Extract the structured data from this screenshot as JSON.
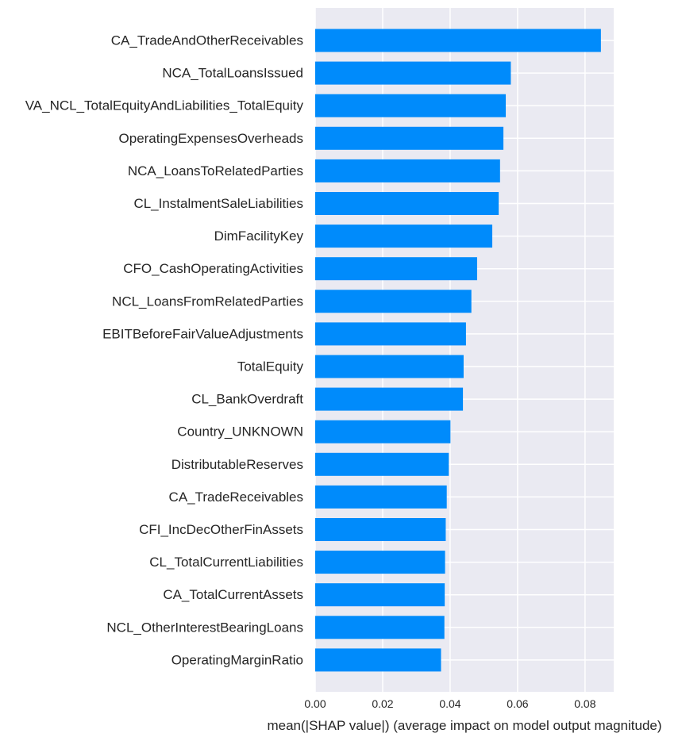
{
  "colors": {
    "bar": "#008bfb",
    "plot_background": "#eaeaf2",
    "grid": "#ffffff",
    "text": "#262626"
  },
  "chart_data": {
    "type": "bar",
    "orientation": "horizontal",
    "xlabel": "mean(|SHAP value|) (average impact on model output magnitude)",
    "xlim": [
      0,
      0.0885
    ],
    "xticks": [
      0.0,
      0.02,
      0.04,
      0.06,
      0.08
    ],
    "xtick_labels": [
      "0.00",
      "0.02",
      "0.04",
      "0.06",
      "0.08"
    ],
    "grid": true,
    "categories": [
      "CA_TradeAndOtherReceivables",
      "NCA_TotalLoansIssued",
      "VA_NCL_TotalEquityAndLiabilities_TotalEquity",
      "OperatingExpensesOverheads",
      "NCA_LoansToRelatedParties",
      "CL_InstalmentSaleLiabilities",
      "DimFacilityKey",
      "CFO_CashOperatingActivities",
      "NCL_LoansFromRelatedParties",
      "EBITBeforeFairValueAdjustments",
      "TotalEquity",
      "CL_BankOverdraft",
      "Country_UNKNOWN",
      "DistributableReserves",
      "CA_TradeReceivables",
      "CFI_IncDecOtherFinAssets",
      "CL_TotalCurrentLiabilities",
      "CA_TotalCurrentAssets",
      "NCL_OtherInterestBearingLoans",
      "OperatingMarginRatio"
    ],
    "values": [
      0.0847,
      0.058,
      0.0565,
      0.0558,
      0.0548,
      0.0544,
      0.0525,
      0.048,
      0.0463,
      0.0447,
      0.044,
      0.0438,
      0.0401,
      0.0396,
      0.039,
      0.0387,
      0.0385,
      0.0384,
      0.0383,
      0.0373
    ]
  }
}
